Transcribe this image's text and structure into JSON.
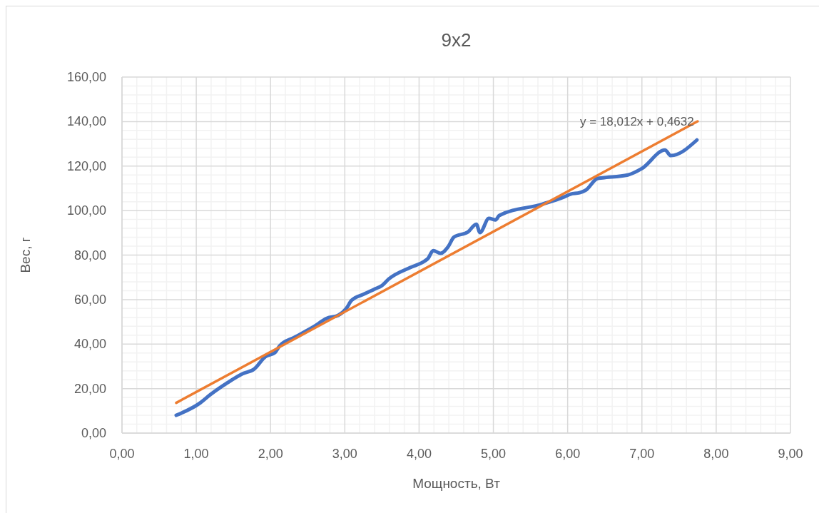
{
  "chart_data": {
    "type": "line",
    "title": "9x2",
    "xlabel": "Мощность, Вт",
    "ylabel": "Вес, г",
    "xlim": [
      0,
      9
    ],
    "xticks": [
      {
        "value": 0,
        "label": "0,00"
      },
      {
        "value": 1,
        "label": "1,00"
      },
      {
        "value": 2,
        "label": "2,00"
      },
      {
        "value": 3,
        "label": "3,00"
      },
      {
        "value": 4,
        "label": "4,00"
      },
      {
        "value": 5,
        "label": "5,00"
      },
      {
        "value": 6,
        "label": "6,00"
      },
      {
        "value": 7,
        "label": "7,00"
      },
      {
        "value": 8,
        "label": "8,00"
      },
      {
        "value": 9,
        "label": "9,00"
      }
    ],
    "ylim": [
      0,
      160
    ],
    "yticks": [
      {
        "value": 0,
        "label": "0,00"
      },
      {
        "value": 20,
        "label": "20,00"
      },
      {
        "value": 40,
        "label": "40,00"
      },
      {
        "value": 60,
        "label": "60,00"
      },
      {
        "value": 80,
        "label": "80,00"
      },
      {
        "value": 100,
        "label": "100,00"
      },
      {
        "value": 120,
        "label": "120,00"
      },
      {
        "value": 140,
        "label": "140,00"
      },
      {
        "value": 160,
        "label": "160,00"
      }
    ],
    "grid": true,
    "marker": "none",
    "line_style": "solid",
    "series": [
      {
        "color": "#4472c4",
        "x": [
          0.73,
          1.05,
          1.19,
          1.41,
          1.62,
          1.78,
          1.93,
          2.06,
          2.12,
          2.32,
          2.58,
          2.76,
          2.91,
          3.02,
          3.09,
          3.26,
          3.4,
          3.5,
          3.59,
          3.88,
          4.07,
          4.12,
          4.19,
          4.29,
          4.39,
          4.47,
          4.66,
          4.77,
          4.82,
          4.94,
          5.03,
          5.08,
          5.66,
          5.95,
          6.04,
          6.16,
          6.25,
          6.4,
          6.47,
          6.81,
          7.0,
          7.31,
          7.39,
          7.74
        ],
        "values": [
          8,
          13.5,
          17.3,
          22.4,
          26.6,
          28.8,
          34.3,
          36.2,
          39.1,
          43,
          47.8,
          51.6,
          52.9,
          56,
          59.6,
          62.5,
          64.7,
          66.3,
          69.2,
          74.4,
          77.2,
          78.5,
          82,
          80.8,
          83.7,
          88.1,
          90.4,
          93.9,
          90.1,
          96.5,
          95.8,
          97.8,
          102.9,
          106.1,
          107.4,
          108,
          109.3,
          114.4,
          114.7,
          116,
          118.9,
          127.2,
          124.7,
          131.7
        ]
      },
      {
        "type": "line",
        "color": "#ed7d31",
        "x": [
          0.73,
          7.75
        ],
        "values": [
          13.6,
          140.1
        ]
      }
    ],
    "annotations": [
      "y = 18,012x + 0,4632"
    ]
  }
}
